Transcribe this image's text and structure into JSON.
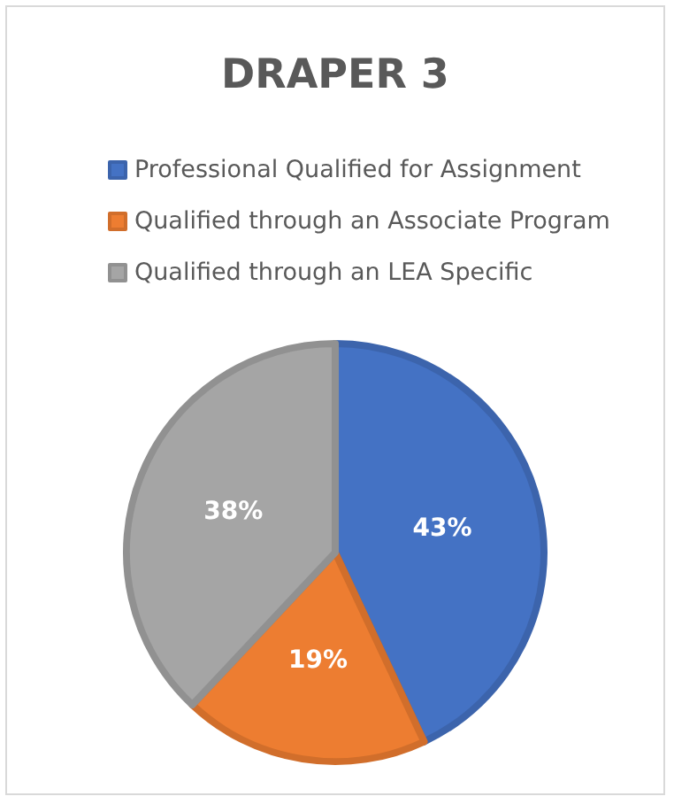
{
  "chart_data": {
    "type": "pie",
    "title": "DRAPER 3",
    "categories": [
      "Professional Qualified for Assignment",
      "Qualified through an Associate Program",
      "Qualified through an LEA Specific"
    ],
    "values": [
      43,
      19,
      38
    ],
    "colors": [
      "#4472c4",
      "#ed7d31",
      "#a5a5a5"
    ],
    "value_labels": [
      "43%",
      "19%",
      "38%"
    ],
    "legend": "top"
  }
}
